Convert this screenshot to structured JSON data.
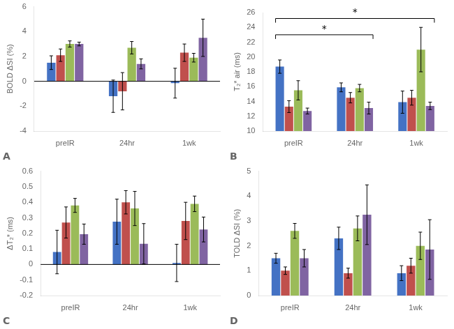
{
  "chart_data": [
    {
      "type": "bar",
      "title": "A",
      "ylabel": "BOLD ΔSI (%)",
      "categories": [
        "preIR",
        "24hr",
        "1wk"
      ],
      "ylim": [
        -4,
        6
      ],
      "yticks": [
        -4,
        -2,
        0,
        2,
        4,
        6
      ],
      "grid": false,
      "series": [
        {
          "color": "#4472C4",
          "values": [
            1.5,
            -1.2,
            -0.15
          ],
          "errors": [
            0.55,
            1.3,
            1.2
          ]
        },
        {
          "color": "#C0504D",
          "values": [
            2.1,
            -0.8,
            2.3
          ],
          "errors": [
            0.5,
            1.5,
            0.7
          ]
        },
        {
          "color": "#9BBB59",
          "values": [
            3.0,
            2.7,
            1.9
          ],
          "errors": [
            0.25,
            0.5,
            0.35
          ]
        },
        {
          "color": "#8064A2",
          "values": [
            3.0,
            1.4,
            3.5
          ],
          "errors": [
            0.15,
            0.4,
            1.5
          ]
        }
      ]
    },
    {
      "type": "bar",
      "title": "B",
      "ylabel": "T₂* air (ms)",
      "categories": [
        "preIR",
        "24hr",
        "1wk"
      ],
      "ylim": [
        10,
        26
      ],
      "yticks": [
        10,
        12,
        14,
        16,
        18,
        20,
        22,
        24,
        26
      ],
      "grid": false,
      "series": [
        {
          "color": "#4472C4",
          "values": [
            18.7,
            15.9,
            13.9
          ],
          "errors": [
            0.9,
            0.6,
            1.5
          ]
        },
        {
          "color": "#C0504D",
          "values": [
            13.3,
            14.5,
            14.5
          ],
          "errors": [
            0.8,
            0.7,
            1.0
          ]
        },
        {
          "color": "#9BBB59",
          "values": [
            15.5,
            15.8,
            21.0
          ],
          "errors": [
            1.3,
            0.5,
            3.0
          ]
        },
        {
          "color": "#8064A2",
          "values": [
            12.7,
            13.1,
            13.4
          ],
          "errors": [
            0.4,
            0.8,
            0.5
          ]
        }
      ],
      "annotations": [
        {
          "text": "*",
          "x1": "preIR",
          "x2": "24hr",
          "y": 23.0
        },
        {
          "text": "*",
          "x1": "preIR",
          "x2": "1wk",
          "y": 25.2
        }
      ]
    },
    {
      "type": "bar",
      "title": "C",
      "ylabel": "ΔT₂* (ms)",
      "categories": [
        "preIR",
        "24hr",
        "1wk"
      ],
      "ylim": [
        -0.2,
        0.6
      ],
      "yticks": [
        -0.2,
        -0.1,
        0,
        0.1,
        0.2,
        0.3,
        0.4,
        0.5,
        0.6
      ],
      "grid": false,
      "series": [
        {
          "color": "#4472C4",
          "values": [
            0.08,
            0.275,
            0.01
          ],
          "errors": [
            0.14,
            0.145,
            0.12
          ]
        },
        {
          "color": "#C0504D",
          "values": [
            0.27,
            0.4,
            0.28
          ],
          "errors": [
            0.1,
            0.075,
            0.12
          ]
        },
        {
          "color": "#9BBB59",
          "values": [
            0.38,
            0.36,
            0.39
          ],
          "errors": [
            0.045,
            0.11,
            0.05
          ]
        },
        {
          "color": "#8064A2",
          "values": [
            0.195,
            0.133,
            0.225
          ],
          "errors": [
            0.065,
            0.13,
            0.08
          ]
        }
      ]
    },
    {
      "type": "bar",
      "title": "D",
      "ylabel": "TOLD ΔSI (%)",
      "categories": [
        "preIR",
        "24hr",
        "1wk"
      ],
      "ylim": [
        0,
        5
      ],
      "yticks": [
        0,
        1,
        2,
        3,
        4,
        5
      ],
      "grid": false,
      "series": [
        {
          "color": "#4472C4",
          "values": [
            1.5,
            2.3,
            0.9
          ],
          "errors": [
            0.2,
            0.45,
            0.3
          ]
        },
        {
          "color": "#C0504D",
          "values": [
            1.0,
            0.9,
            1.2
          ],
          "errors": [
            0.15,
            0.2,
            0.3
          ]
        },
        {
          "color": "#9BBB59",
          "values": [
            2.6,
            2.7,
            2.0
          ],
          "errors": [
            0.3,
            0.5,
            0.55
          ]
        },
        {
          "color": "#8064A2",
          "values": [
            1.5,
            3.25,
            1.85
          ],
          "errors": [
            0.35,
            1.2,
            1.2
          ]
        }
      ]
    }
  ]
}
